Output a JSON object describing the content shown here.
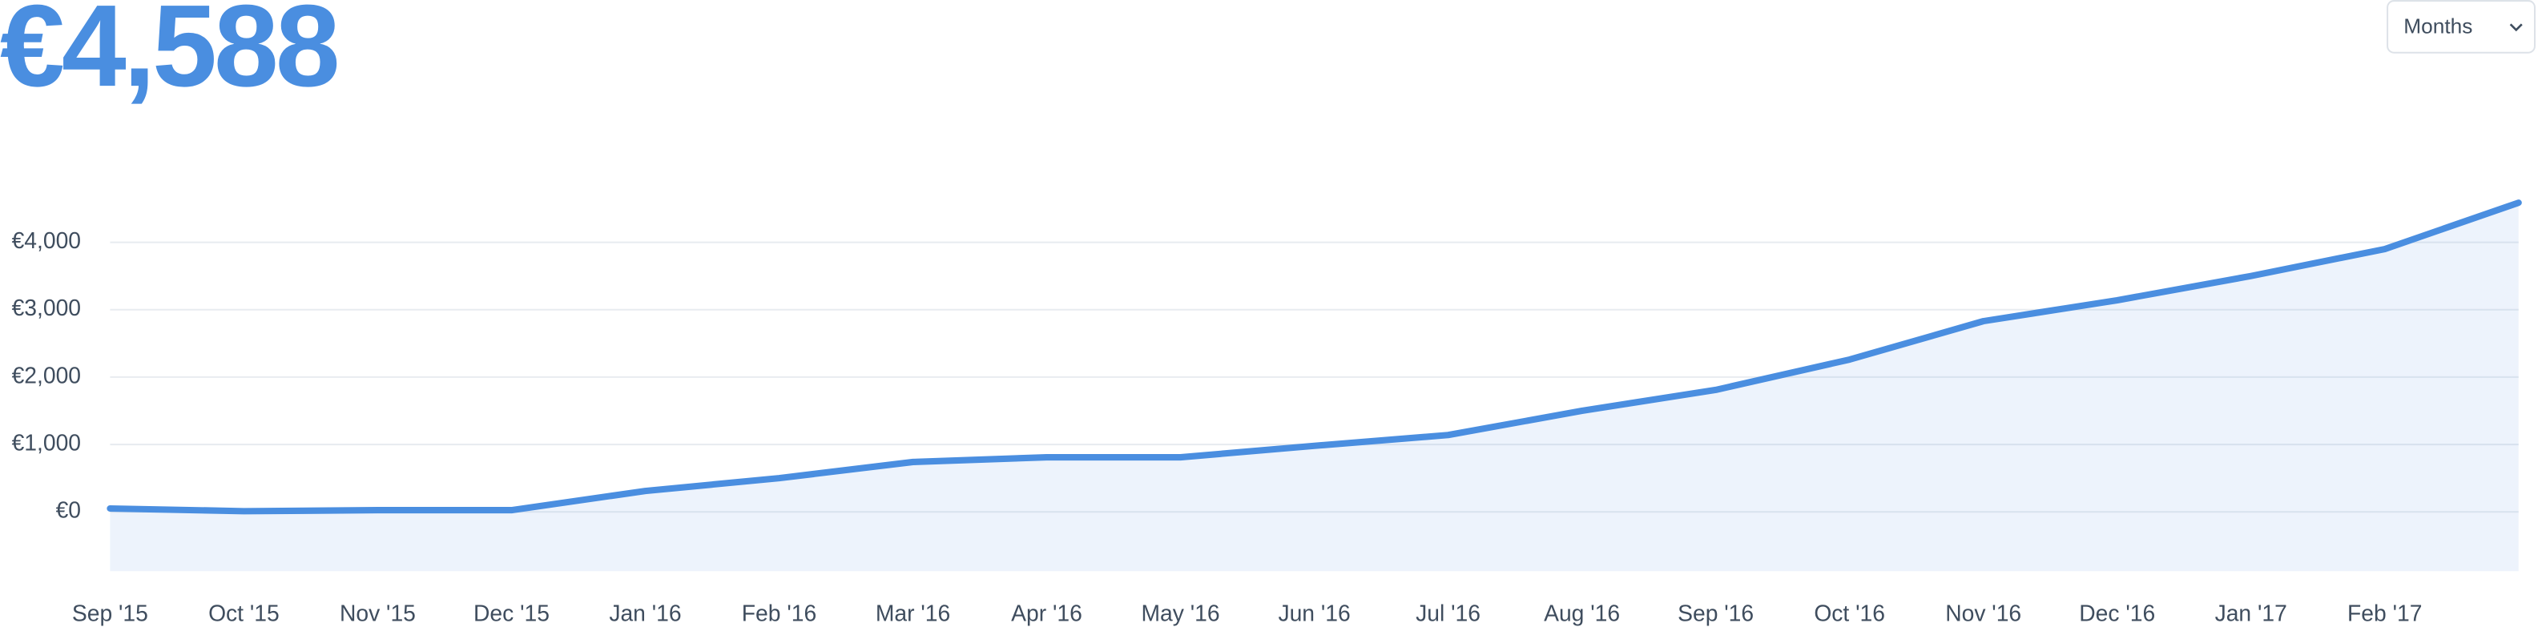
{
  "header": {
    "total": "€4,588",
    "period_select": "Months"
  },
  "chart_data": {
    "type": "area",
    "categories": [
      "Sep '15",
      "Oct '15",
      "Nov '15",
      "Dec '15",
      "Jan '16",
      "Feb '16",
      "Mar '16",
      "Apr '16",
      "May '16",
      "Jun '16",
      "Jul '16",
      "Aug '16",
      "Sep '16",
      "Oct '16",
      "Nov '16",
      "Dec '16",
      "Jan '17",
      "Feb '17",
      null
    ],
    "series": [
      {
        "color": "#4a8ee0",
        "values": [
          50,
          10,
          25,
          25,
          310,
          500,
          740,
          810,
          810,
          980,
          1140,
          1500,
          1810,
          2260,
          2830,
          3140,
          3500,
          3900,
          4588
        ]
      }
    ],
    "ylim": [
      -880,
      4700
    ],
    "yticks": [
      {
        "value": 0,
        "label": "€0"
      },
      {
        "value": 1000,
        "label": "€1,000"
      },
      {
        "value": 2000,
        "label": "€2,000"
      },
      {
        "value": 3000,
        "label": "€3,000"
      },
      {
        "value": 4000,
        "label": "€4,000"
      }
    ],
    "grid": true
  }
}
